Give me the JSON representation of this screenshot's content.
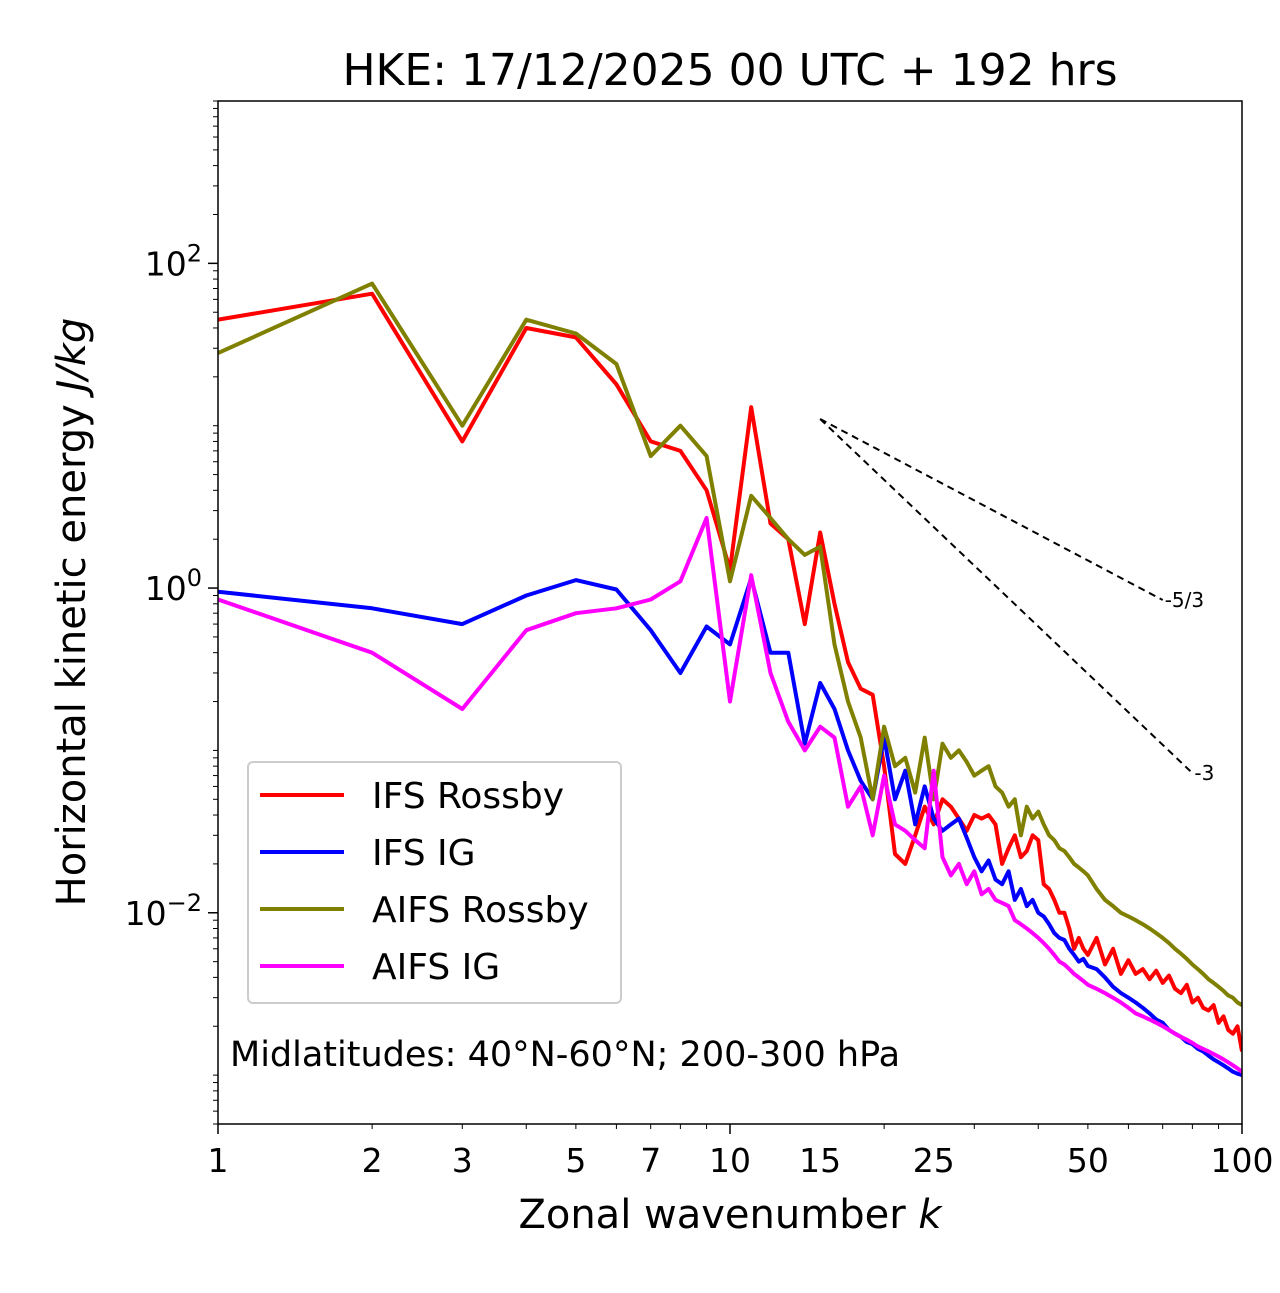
{
  "chart_data": {
    "type": "line",
    "title": "HKE: 17/12/2025 00 UTC + 192 hrs",
    "xlabel_prefix": "Zonal wavenumber ",
    "xlabel_var": "k",
    "ylabel_prefix": "Horizontal kinetic energy ",
    "ylabel_unit": "J/kg",
    "xscale": "log",
    "yscale": "log",
    "xlim": [
      1,
      100
    ],
    "ylim": [
      0.0005,
      1000
    ],
    "xticks": [
      1,
      2,
      3,
      5,
      7,
      10,
      15,
      25,
      50,
      100
    ],
    "xtick_labels": [
      "1",
      "2",
      "3",
      "5",
      "7",
      "10",
      "15",
      "25",
      "50",
      "100"
    ],
    "yticks": [
      {
        "value": 100,
        "base": "10",
        "exp": "2"
      },
      {
        "value": 1,
        "base": "10",
        "exp": "0"
      },
      {
        "value": 0.01,
        "base": "10",
        "exp": "−2"
      }
    ],
    "annotation": "Midlatitudes: 40°N-60°N; 200-300 hPa",
    "legend_position": "lower-left",
    "reference_lines": [
      {
        "label": "-5/3",
        "slope": -1.6667,
        "x_start": 15,
        "y_start": 11,
        "x_end": 70
      },
      {
        "label": "-3",
        "slope": -3,
        "x_start": 15,
        "y_start": 11,
        "x_end": 80
      }
    ],
    "series": [
      {
        "name": "IFS Rossby",
        "color": "#ff0000",
        "x": [
          1,
          2,
          3,
          4,
          5,
          6,
          7,
          8,
          9,
          10,
          11,
          12,
          13,
          14,
          15,
          16,
          17,
          18,
          19,
          20,
          21,
          22,
          23,
          24,
          25,
          26,
          27,
          28,
          29,
          30,
          31,
          32,
          33,
          34,
          35,
          36,
          37,
          38,
          39,
          40,
          41,
          42,
          43,
          44,
          45,
          46,
          47,
          48,
          49,
          50,
          52,
          54,
          56,
          58,
          60,
          62,
          64,
          66,
          68,
          70,
          72,
          74,
          76,
          78,
          80,
          82,
          84,
          86,
          88,
          90,
          92,
          94,
          96,
          98,
          100
        ],
        "values": [
          45,
          65,
          8,
          40,
          35,
          18,
          8,
          7,
          4,
          1.3,
          13,
          2.5,
          2,
          0.6,
          2.2,
          0.8,
          0.35,
          0.24,
          0.22,
          0.08,
          0.023,
          0.02,
          0.03,
          0.045,
          0.035,
          0.05,
          0.045,
          0.038,
          0.032,
          0.04,
          0.038,
          0.04,
          0.035,
          0.02,
          0.025,
          0.03,
          0.022,
          0.024,
          0.03,
          0.028,
          0.015,
          0.014,
          0.012,
          0.01,
          0.01,
          0.008,
          0.006,
          0.007,
          0.006,
          0.0055,
          0.007,
          0.0048,
          0.006,
          0.0042,
          0.0051,
          0.0042,
          0.0045,
          0.0039,
          0.0044,
          0.0037,
          0.0041,
          0.0034,
          0.0032,
          0.0036,
          0.0028,
          0.003,
          0.0026,
          0.0025,
          0.0027,
          0.0021,
          0.0023,
          0.0019,
          0.0018,
          0.002,
          0.0014
        ]
      },
      {
        "name": "IFS IG",
        "color": "#0000ff",
        "x": [
          1,
          2,
          3,
          4,
          5,
          6,
          7,
          8,
          9,
          10,
          11,
          12,
          13,
          14,
          15,
          16,
          17,
          18,
          19,
          20,
          21,
          22,
          23,
          24,
          25,
          26,
          27,
          28,
          29,
          30,
          31,
          32,
          33,
          34,
          35,
          36,
          37,
          38,
          39,
          40,
          41,
          42,
          43,
          44,
          45,
          46,
          47,
          48,
          49,
          50,
          52,
          54,
          56,
          58,
          60,
          62,
          64,
          66,
          68,
          70,
          72,
          74,
          76,
          78,
          80,
          82,
          84,
          86,
          88,
          90,
          92,
          94,
          96,
          98,
          100
        ],
        "values": [
          0.95,
          0.75,
          0.6,
          0.9,
          1.12,
          0.98,
          0.55,
          0.3,
          0.58,
          0.45,
          1.15,
          0.4,
          0.4,
          0.11,
          0.26,
          0.18,
          0.1,
          0.065,
          0.05,
          0.12,
          0.05,
          0.075,
          0.035,
          0.06,
          0.038,
          0.032,
          0.035,
          0.038,
          0.029,
          0.022,
          0.018,
          0.021,
          0.016,
          0.015,
          0.018,
          0.012,
          0.014,
          0.011,
          0.012,
          0.01,
          0.0095,
          0.0085,
          0.0075,
          0.007,
          0.0068,
          0.006,
          0.0055,
          0.005,
          0.0052,
          0.0047,
          0.0045,
          0.004,
          0.0035,
          0.0032,
          0.003,
          0.0028,
          0.0026,
          0.0024,
          0.0022,
          0.0021,
          0.0019,
          0.0018,
          0.00172,
          0.0016,
          0.00155,
          0.00145,
          0.0014,
          0.00132,
          0.00125,
          0.0012,
          0.00115,
          0.0011,
          0.00105,
          0.00102,
          0.001
        ]
      },
      {
        "name": "AIFS Rossby",
        "color": "#808000",
        "x": [
          1,
          2,
          3,
          4,
          5,
          6,
          7,
          8,
          9,
          10,
          11,
          12,
          13,
          14,
          15,
          16,
          17,
          18,
          19,
          20,
          21,
          22,
          23,
          24,
          25,
          26,
          27,
          28,
          29,
          30,
          31,
          32,
          33,
          34,
          35,
          36,
          37,
          38,
          39,
          40,
          41,
          42,
          43,
          44,
          45,
          46,
          47,
          48,
          49,
          50,
          52,
          54,
          56,
          58,
          60,
          62,
          64,
          66,
          68,
          70,
          72,
          74,
          76,
          78,
          80,
          82,
          84,
          86,
          88,
          90,
          92,
          94,
          96,
          98,
          100
        ],
        "values": [
          28,
          75,
          10,
          45,
          37,
          24,
          6.5,
          10,
          6.5,
          1.1,
          3.7,
          2.7,
          2,
          1.6,
          1.8,
          0.45,
          0.2,
          0.12,
          0.05,
          0.14,
          0.08,
          0.09,
          0.055,
          0.12,
          0.05,
          0.11,
          0.09,
          0.1,
          0.085,
          0.07,
          0.075,
          0.08,
          0.06,
          0.055,
          0.045,
          0.05,
          0.03,
          0.045,
          0.038,
          0.042,
          0.035,
          0.03,
          0.028,
          0.025,
          0.024,
          0.022,
          0.02,
          0.019,
          0.018,
          0.017,
          0.014,
          0.012,
          0.011,
          0.01,
          0.0095,
          0.009,
          0.0085,
          0.008,
          0.0075,
          0.007,
          0.0065,
          0.006,
          0.0056,
          0.0052,
          0.0048,
          0.0045,
          0.0042,
          0.0039,
          0.0037,
          0.0035,
          0.0033,
          0.0031,
          0.003,
          0.0028,
          0.0027
        ]
      },
      {
        "name": "AIFS IG",
        "color": "#ff00ff",
        "x": [
          1,
          2,
          3,
          4,
          5,
          6,
          7,
          8,
          9,
          10,
          11,
          12,
          13,
          14,
          15,
          16,
          17,
          18,
          19,
          20,
          21,
          22,
          23,
          24,
          25,
          26,
          27,
          28,
          29,
          30,
          31,
          32,
          33,
          34,
          35,
          36,
          37,
          38,
          39,
          40,
          41,
          42,
          43,
          44,
          45,
          46,
          47,
          48,
          49,
          50,
          52,
          54,
          56,
          58,
          60,
          62,
          64,
          66,
          68,
          70,
          72,
          74,
          76,
          78,
          80,
          82,
          84,
          86,
          88,
          90,
          92,
          94,
          96,
          98,
          100
        ],
        "values": [
          0.85,
          0.4,
          0.18,
          0.55,
          0.7,
          0.75,
          0.85,
          1.1,
          2.7,
          0.2,
          1.2,
          0.3,
          0.15,
          0.1,
          0.14,
          0.12,
          0.045,
          0.06,
          0.03,
          0.07,
          0.035,
          0.032,
          0.028,
          0.025,
          0.075,
          0.022,
          0.017,
          0.02,
          0.015,
          0.018,
          0.013,
          0.014,
          0.012,
          0.0115,
          0.011,
          0.009,
          0.0085,
          0.008,
          0.0075,
          0.007,
          0.0065,
          0.006,
          0.0055,
          0.005,
          0.0048,
          0.0045,
          0.0042,
          0.004,
          0.0038,
          0.0036,
          0.0034,
          0.0032,
          0.003,
          0.0028,
          0.0026,
          0.0024,
          0.0023,
          0.0022,
          0.0021,
          0.002,
          0.0019,
          0.0018,
          0.00172,
          0.00165,
          0.00158,
          0.0015,
          0.00145,
          0.0014,
          0.00135,
          0.0013,
          0.00125,
          0.0012,
          0.00115,
          0.0011,
          0.00105
        ]
      }
    ]
  }
}
